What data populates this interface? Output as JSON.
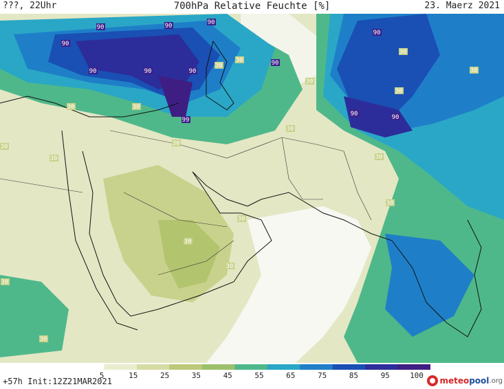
{
  "header": {
    "left": "???, 22Uhr",
    "title": "700hPa Relative Feuchte [%]",
    "date": "23. Maerz 2021"
  },
  "footer": {
    "run_info": "+57h  Init:12Z21MAR2021"
  },
  "brand": {
    "part1": "meteo",
    "part2": "pool",
    "part3": ".org"
  },
  "legend": {
    "ticks": [
      "5",
      "15",
      "25",
      "35",
      "45",
      "55",
      "65",
      "75",
      "85",
      "95",
      "100"
    ],
    "colors": [
      "#ffffff",
      "#eaeecf",
      "#d7dca4",
      "#bcc87a",
      "#9cc06a",
      "#4fb88a",
      "#2aa7c6",
      "#1e7fc8",
      "#1a4fb3",
      "#2c2d9a",
      "#3e1e82"
    ]
  },
  "contour_labels": [
    {
      "text": "90",
      "dark": true
    },
    {
      "text": "90",
      "dark": true
    },
    {
      "text": "90",
      "dark": true
    },
    {
      "text": "90",
      "dark": true
    },
    {
      "text": "90",
      "dark": true
    },
    {
      "text": "90",
      "dark": true
    },
    {
      "text": "90",
      "dark": true
    },
    {
      "text": "99",
      "dark": true
    },
    {
      "text": "90",
      "dark": true
    },
    {
      "text": "90",
      "dark": true
    },
    {
      "text": "90",
      "dark": true
    },
    {
      "text": "90",
      "dark": true
    },
    {
      "text": "30",
      "dark": false
    },
    {
      "text": "30",
      "dark": false
    },
    {
      "text": "30",
      "dark": false
    },
    {
      "text": "30",
      "dark": false
    },
    {
      "text": "30",
      "dark": false
    },
    {
      "text": "30",
      "dark": false
    },
    {
      "text": "30",
      "dark": false
    },
    {
      "text": "30",
      "dark": false
    },
    {
      "text": "30",
      "dark": false
    },
    {
      "text": "30",
      "dark": false
    },
    {
      "text": "30",
      "dark": false
    },
    {
      "text": "30",
      "dark": false
    },
    {
      "text": "30",
      "dark": false
    },
    {
      "text": "30",
      "dark": false
    },
    {
      "text": "30",
      "dark": false
    },
    {
      "text": "30",
      "dark": false
    },
    {
      "text": "30",
      "dark": false
    },
    {
      "text": "30",
      "dark": false
    },
    {
      "text": "30",
      "dark": false
    }
  ]
}
